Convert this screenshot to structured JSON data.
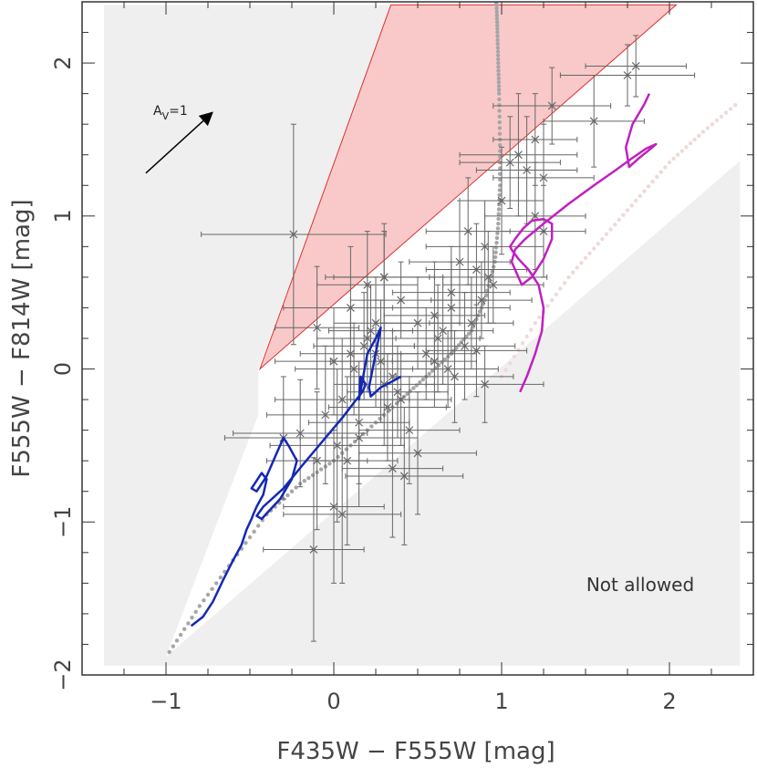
{
  "chart_data": {
    "type": "scatter",
    "title": "",
    "xlabel": "F435W − F555W [mag]",
    "ylabel": "F555W − F814W [mag]",
    "xlim": [
      -1.5,
      2.5
    ],
    "ylim": [
      -2.0,
      2.4
    ],
    "x_ticks": [
      -1,
      0,
      1,
      2
    ],
    "x_tick_labels": [
      "−1",
      "0",
      "1",
      "2"
    ],
    "y_ticks": [
      -2,
      -1,
      0,
      1,
      2
    ],
    "y_tick_labels": [
      "−2",
      "−1",
      "0",
      "1",
      "2"
    ],
    "grid": false,
    "annotations": {
      "not_allowed": "Not allowed",
      "extinction_label_main": "A",
      "extinction_label_sub": "V",
      "extinction_label_tail": "=1"
    },
    "extinction_vector": {
      "x0": -1.12,
      "y0": 1.28,
      "x1": -0.73,
      "y1": 1.67
    },
    "not_allowed_region": {
      "outer": [
        [
          -1.37,
          -1.94
        ],
        [
          2.42,
          -1.94
        ],
        [
          2.42,
          2.38
        ],
        [
          -1.37,
          2.38
        ]
      ],
      "allowed_wedge": [
        [
          -1.0,
          -1.88
        ],
        [
          2.42,
          1.36
        ],
        [
          2.42,
          2.38
        ],
        [
          0.35,
          2.38
        ],
        [
          -0.45,
          0.0
        ],
        [
          -0.45,
          -0.3
        ]
      ]
    },
    "red_wedge": [
      [
        -0.44,
        0.0
      ],
      [
        0.34,
        2.38
      ],
      [
        2.04,
        2.38
      ]
    ],
    "series": [
      {
        "name": "",
        "kind": "errorbar-points",
        "color": "#666666",
        "x": [
          -0.24,
          -0.12,
          -0.1,
          0.0,
          0.05,
          0.1,
          0.15,
          0.2,
          0.25,
          0.3,
          -0.05,
          0.02,
          0.08,
          0.12,
          0.18,
          0.22,
          0.28,
          0.32,
          0.38,
          0.42,
          0.1,
          0.2,
          0.3,
          0.4,
          0.5,
          0.6,
          0.7,
          0.75,
          0.8,
          0.85,
          0.9,
          0.95,
          0.55,
          0.62,
          0.68,
          0.72,
          0.78,
          0.82,
          0.88,
          0.92,
          1.0,
          1.05,
          1.1,
          1.15,
          1.2,
          1.25,
          1.3,
          1.55,
          1.75,
          1.8,
          1.2,
          1.25,
          0.45,
          0.5,
          0.35,
          0.6,
          0.65,
          0.7,
          0.0,
          0.05,
          0.15,
          0.25,
          0.4,
          -0.2,
          -0.3,
          -0.1,
          0.3,
          0.35,
          0.85,
          0.9
        ],
        "y": [
          0.88,
          -1.18,
          0.27,
          0.05,
          -0.2,
          0.1,
          -0.45,
          0.2,
          0.3,
          -0.1,
          -0.3,
          -0.5,
          -0.6,
          0.0,
          0.15,
          0.25,
          0.05,
          -0.25,
          -0.15,
          -0.7,
          0.4,
          0.55,
          0.6,
          0.45,
          0.3,
          0.35,
          0.5,
          0.7,
          0.9,
          0.65,
          0.8,
          0.55,
          0.1,
          0.2,
          0.0,
          -0.05,
          0.15,
          0.3,
          0.45,
          0.6,
          1.1,
          1.35,
          1.4,
          1.3,
          1.5,
          1.25,
          1.72,
          1.62,
          1.92,
          1.98,
          1.0,
          0.9,
          -0.4,
          -0.55,
          -0.65,
          0.05,
          0.25,
          0.4,
          -0.9,
          -0.95,
          -0.35,
          0.1,
          -0.2,
          -0.42,
          -0.45,
          -0.6,
          0.6,
          -0.05,
          0.12,
          -0.1
        ],
        "xerr": [
          0.55,
          0.3,
          0.25,
          0.35,
          0.4,
          0.3,
          0.35,
          0.3,
          0.25,
          0.3,
          0.35,
          0.4,
          0.3,
          0.35,
          0.3,
          0.25,
          0.3,
          0.35,
          0.3,
          0.35,
          0.4,
          0.3,
          0.35,
          0.3,
          0.25,
          0.3,
          0.35,
          0.3,
          0.25,
          0.3,
          0.35,
          0.3,
          0.3,
          0.25,
          0.3,
          0.35,
          0.3,
          0.25,
          0.3,
          0.35,
          0.25,
          0.3,
          0.35,
          0.3,
          0.25,
          0.3,
          0.35,
          0.3,
          0.4,
          0.3,
          0.3,
          0.25,
          0.3,
          0.35,
          0.3,
          0.25,
          0.3,
          0.35,
          0.3,
          0.35,
          0.3,
          0.25,
          0.3,
          0.4,
          0.35,
          0.3,
          0.3,
          0.25,
          0.3,
          0.35
        ],
        "yerr": [
          0.72,
          0.6,
          0.4,
          0.35,
          0.4,
          0.3,
          0.45,
          0.35,
          0.3,
          0.4,
          0.45,
          0.5,
          0.55,
          0.3,
          0.35,
          0.3,
          0.4,
          0.35,
          0.3,
          0.45,
          0.4,
          0.35,
          0.3,
          0.25,
          0.3,
          0.35,
          0.3,
          0.4,
          0.35,
          0.3,
          0.3,
          0.25,
          0.3,
          0.35,
          0.25,
          0.3,
          0.35,
          0.3,
          0.25,
          0.3,
          0.35,
          0.3,
          0.4,
          0.35,
          0.3,
          0.35,
          0.25,
          0.3,
          0.2,
          0.2,
          0.35,
          0.3,
          0.35,
          0.4,
          0.45,
          0.3,
          0.35,
          0.3,
          0.5,
          0.45,
          0.4,
          0.35,
          0.3,
          0.35,
          0.4,
          0.45,
          0.35,
          0.3,
          0.3,
          0.25
        ]
      },
      {
        "name": "",
        "kind": "line",
        "color": "#1428b4",
        "x": [
          -0.85,
          -0.78,
          -0.72,
          -0.66,
          -0.6,
          -0.55,
          -0.52,
          -0.49,
          -0.48,
          -0.46,
          -0.42,
          -0.4,
          -0.43,
          -0.49,
          -0.46,
          -0.4,
          -0.34,
          -0.3,
          -0.27,
          -0.22,
          -0.25,
          -0.32,
          -0.38,
          -0.43,
          -0.46,
          -0.42,
          -0.3,
          -0.18,
          -0.05,
          0.05,
          0.12,
          0.17,
          0.19,
          0.16,
          0.15,
          0.2,
          0.25,
          0.28,
          0.24,
          0.21,
          0.22,
          0.28,
          0.35,
          0.4
        ],
        "y": [
          -1.68,
          -1.62,
          -1.52,
          -1.38,
          -1.25,
          -1.15,
          -1.05,
          -0.98,
          -0.95,
          -0.9,
          -0.82,
          -0.72,
          -0.68,
          -0.78,
          -0.8,
          -0.7,
          -0.55,
          -0.45,
          -0.5,
          -0.6,
          -0.72,
          -0.85,
          -0.92,
          -0.98,
          -0.96,
          -0.9,
          -0.78,
          -0.62,
          -0.45,
          -0.32,
          -0.22,
          -0.15,
          -0.1,
          -0.05,
          -0.2,
          0.1,
          0.2,
          0.27,
          0.05,
          -0.12,
          -0.18,
          -0.12,
          -0.08,
          -0.05
        ]
      },
      {
        "name": "",
        "kind": "line",
        "color": "#c020c0",
        "x": [
          1.11,
          1.15,
          1.2,
          1.24,
          1.25,
          1.22,
          1.16,
          1.1,
          1.06,
          1.05,
          1.08,
          1.13,
          1.18,
          1.25,
          1.3,
          1.3,
          1.25,
          1.18,
          1.12,
          1.06,
          1.08,
          1.14,
          1.25,
          1.4,
          1.55,
          1.68,
          1.78,
          1.86,
          1.92,
          1.9,
          1.82,
          1.76,
          1.74,
          1.78,
          1.85,
          1.88
        ],
        "y": [
          -0.15,
          -0.05,
          0.1,
          0.25,
          0.4,
          0.55,
          0.65,
          0.72,
          0.78,
          0.8,
          0.85,
          0.92,
          0.97,
          0.98,
          0.95,
          0.85,
          0.72,
          0.6,
          0.55,
          0.7,
          0.78,
          0.85,
          0.95,
          1.08,
          1.2,
          1.3,
          1.38,
          1.44,
          1.47,
          1.45,
          1.38,
          1.32,
          1.45,
          1.6,
          1.73,
          1.8
        ]
      },
      {
        "name": "",
        "kind": "dotted-track",
        "color": "#a6a6a6",
        "x": [
          -0.98,
          -0.8,
          -0.6,
          -0.4,
          -0.2,
          0.0,
          0.2,
          0.4,
          0.55,
          0.7,
          0.82,
          0.9,
          0.96,
          0.98,
          0.99,
          0.99,
          0.985,
          0.98,
          0.975,
          0.97,
          0.96
        ],
        "y": [
          -1.85,
          -1.55,
          -1.25,
          -0.95,
          -0.75,
          -0.6,
          -0.4,
          -0.2,
          -0.05,
          0.1,
          0.25,
          0.45,
          0.7,
          0.95,
          1.2,
          1.5,
          1.8,
          2.0,
          2.2,
          2.38,
          2.45
        ]
      },
      {
        "name": "",
        "kind": "dotted-track",
        "color": "#efd9d9",
        "x": [
          1.0,
          1.2,
          1.4,
          1.6,
          1.8,
          2.0,
          2.2,
          2.42
        ],
        "y": [
          -0.05,
          0.3,
          0.6,
          0.85,
          1.1,
          1.35,
          1.55,
          1.75
        ]
      }
    ]
  }
}
